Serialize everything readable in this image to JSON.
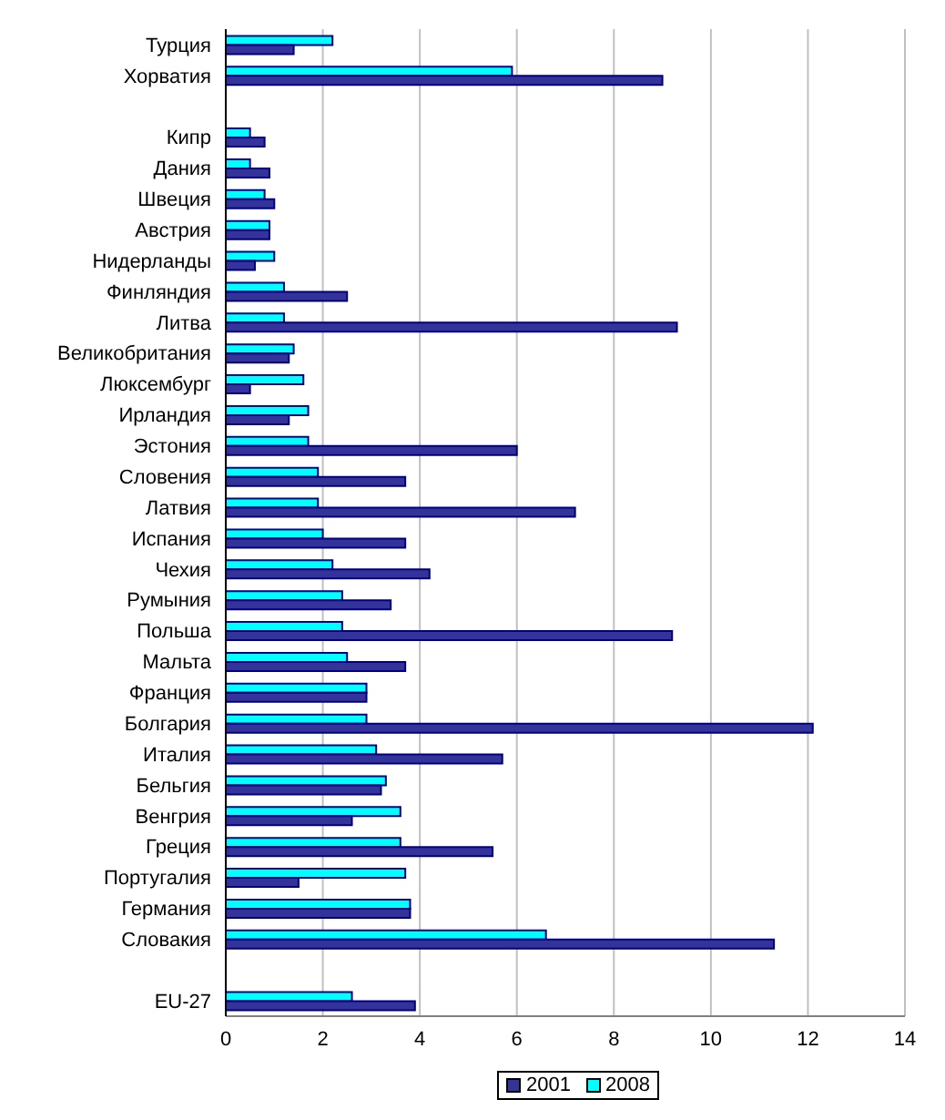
{
  "chart_data": {
    "type": "bar",
    "orientation": "horizontal",
    "categories": [
      "Турция",
      "Хорватия",
      null,
      "Кипр",
      "Дания",
      "Швеция",
      "Австрия",
      "Нидерланды",
      "Финляндия",
      "Литва",
      "Великобритания",
      "Люксембург",
      "Ирландия",
      "Эстония",
      "Словения",
      "Латвия",
      "Испания",
      "Чехия",
      "Румыния",
      "Польша",
      "Мальта",
      "Франция",
      "Болгария",
      "Италия",
      "Бельгия",
      "Венгрия",
      "Греция",
      "Португалия",
      "Германия",
      "Словакия",
      null,
      "EU-27"
    ],
    "series": [
      {
        "name": "2001",
        "color": "#333399",
        "values": [
          1.4,
          9.0,
          null,
          0.8,
          0.9,
          1.0,
          0.9,
          0.6,
          2.5,
          9.3,
          1.3,
          0.5,
          1.3,
          6.0,
          3.7,
          7.2,
          3.7,
          4.2,
          3.4,
          9.2,
          3.7,
          2.9,
          12.1,
          5.7,
          3.2,
          2.6,
          5.5,
          1.5,
          3.8,
          11.3,
          null,
          3.9
        ]
      },
      {
        "name": "2008",
        "color": "#00ffff",
        "values": [
          2.2,
          5.9,
          null,
          0.5,
          0.5,
          0.8,
          0.9,
          1.0,
          1.2,
          1.2,
          1.4,
          1.6,
          1.7,
          1.7,
          1.9,
          1.9,
          2.0,
          2.2,
          2.4,
          2.4,
          2.5,
          2.9,
          2.9,
          3.1,
          3.3,
          3.6,
          3.6,
          3.7,
          3.8,
          6.6,
          null,
          2.6
        ]
      }
    ],
    "xlim": [
      0,
      14
    ],
    "xticks": [
      0,
      2,
      4,
      6,
      8,
      10,
      12,
      14
    ],
    "grid": "x",
    "legend": "bottom"
  }
}
